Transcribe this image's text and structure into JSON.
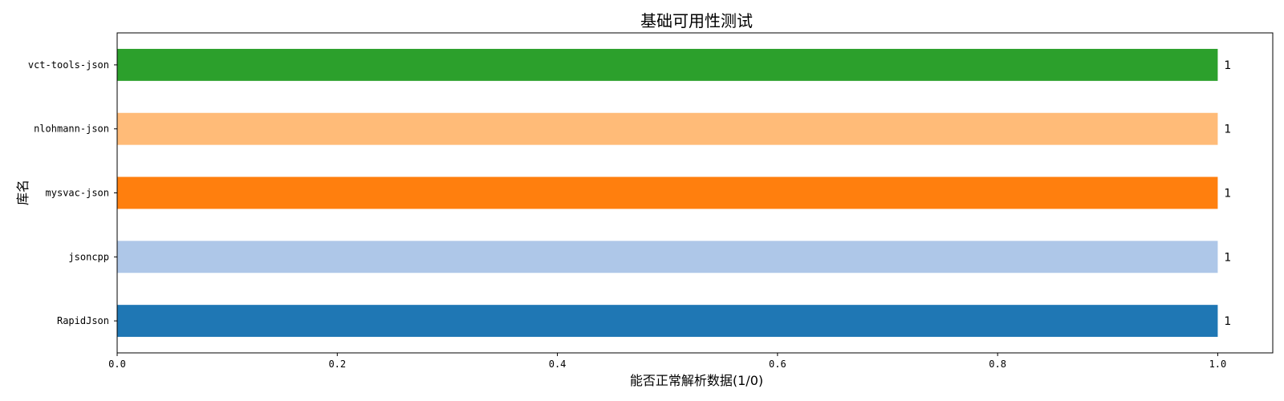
{
  "chart_data": {
    "type": "bar",
    "orientation": "horizontal",
    "title": "基础可用性测试",
    "xlabel": "能否正常解析数据(1/0)",
    "ylabel": "库名",
    "categories": [
      "RapidJson",
      "jsoncpp",
      "mysvac-json",
      "nlohmann-json",
      "vct-tools-json"
    ],
    "values": [
      1,
      1,
      1,
      1,
      1
    ],
    "data_labels": [
      "1",
      "1",
      "1",
      "1",
      "1"
    ],
    "colors": [
      "#1f77b4",
      "#aec7e8",
      "#ff7f0e",
      "#ffbb78",
      "#2ca02c"
    ],
    "xlim": [
      0,
      1.05
    ],
    "xticks": [
      0.0,
      0.2,
      0.4,
      0.6,
      0.8,
      1.0
    ],
    "xtick_labels": [
      "0.0",
      "0.2",
      "0.4",
      "0.6",
      "0.8",
      "1.0"
    ],
    "grid": false,
    "legend": "none"
  }
}
